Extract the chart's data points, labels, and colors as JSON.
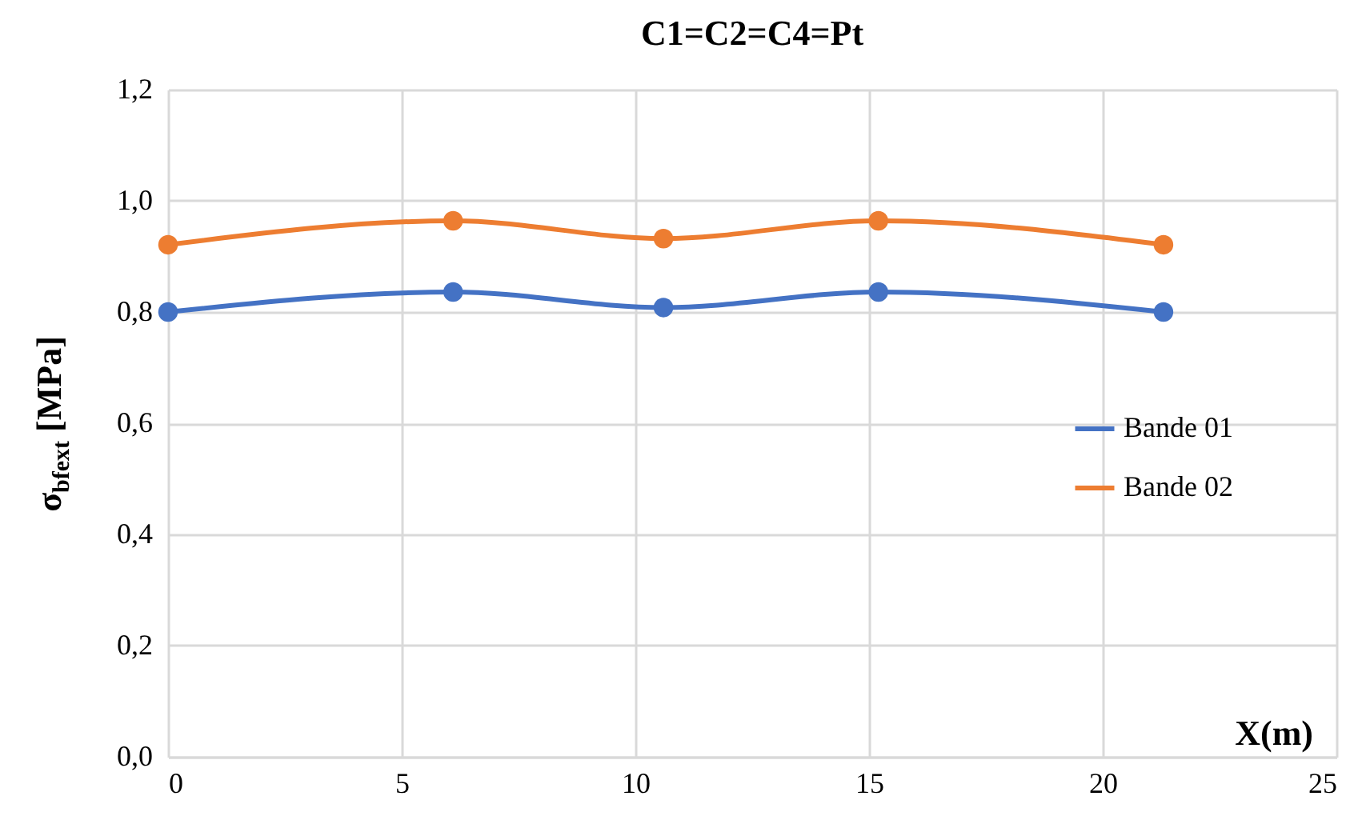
{
  "chart_data": {
    "type": "line",
    "title": "C1=C2=C4=Pt",
    "xlabel": "X(m)",
    "ylabel": "σ$_{bfext}$ [MPa]",
    "x": [
      0,
      6.1,
      10.6,
      15.2,
      21.3
    ],
    "series": [
      {
        "name": "Bande 01",
        "color": "#4472c4",
        "values": [
          0.8,
          0.836,
          0.808,
          0.836,
          0.8
        ]
      },
      {
        "name": "Bande 02",
        "color": "#ed7d31",
        "values": [
          0.921,
          0.964,
          0.932,
          0.964,
          0.921
        ]
      }
    ],
    "xlim": [
      0,
      25
    ],
    "xticks": [
      0,
      5,
      10,
      15,
      20,
      25
    ],
    "ylim": [
      0,
      1.2
    ],
    "yticks": [
      {
        "value": 0,
        "label": "0,0"
      },
      {
        "value": 0.2,
        "label": "0,2"
      },
      {
        "value": 0.4,
        "label": "0,4"
      },
      {
        "value": 0.6,
        "label": "0,6"
      },
      {
        "value": 0.8,
        "label": "0,8"
      },
      {
        "value": 1,
        "label": "1,0"
      },
      {
        "value": 1.2,
        "label": "1,2"
      }
    ],
    "grid": true,
    "legend": "right",
    "marker": "circle",
    "line_style": "solid"
  }
}
